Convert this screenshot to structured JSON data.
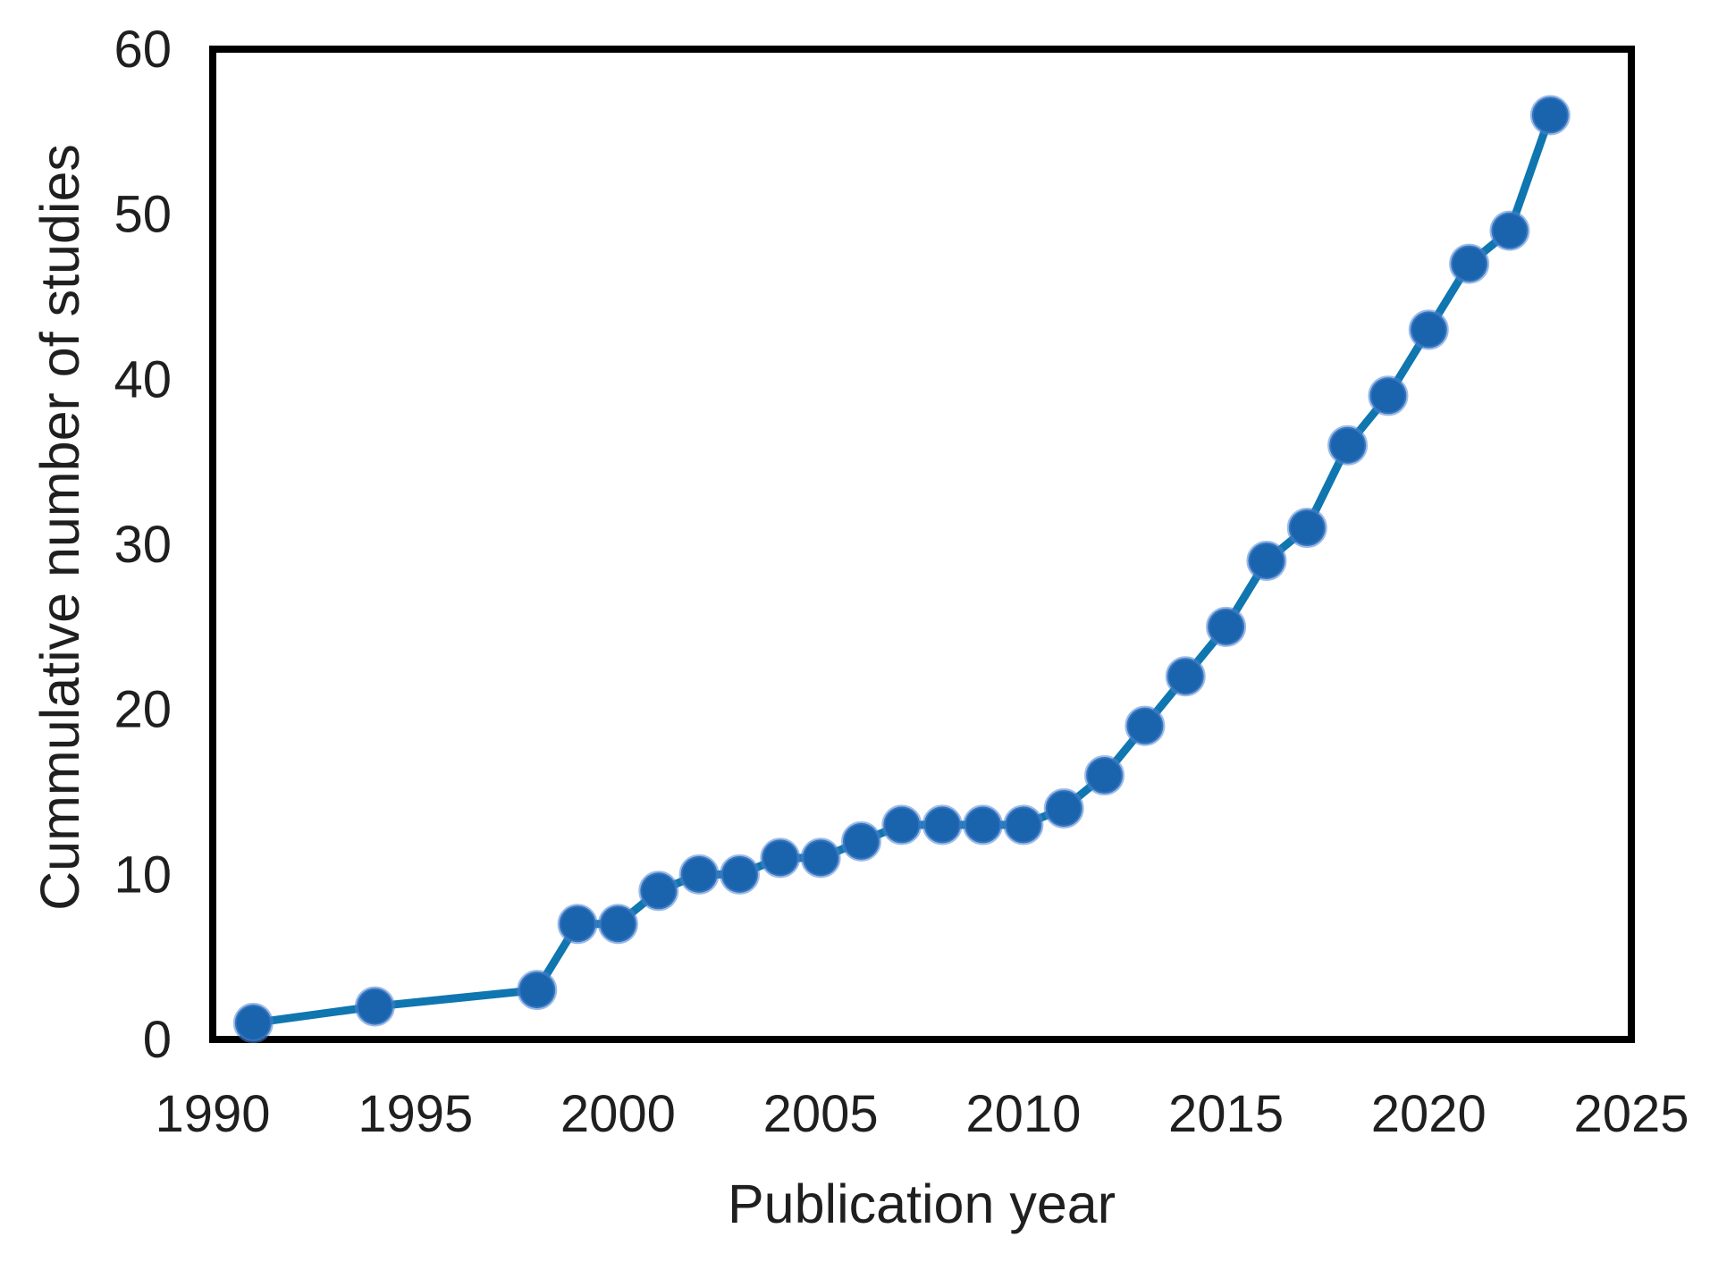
{
  "chart_data": {
    "type": "line",
    "title": "",
    "xlabel": "Publication year",
    "ylabel": "Cummulative number of studies",
    "x": [
      1991,
      1994,
      1998,
      1999,
      2000,
      2001,
      2002,
      2003,
      2004,
      2005,
      2006,
      2007,
      2008,
      2009,
      2010,
      2011,
      2012,
      2013,
      2014,
      2015,
      2016,
      2017,
      2018,
      2019,
      2020,
      2021,
      2022,
      2023
    ],
    "values": [
      1,
      2,
      3,
      7,
      7,
      9,
      10,
      10,
      11,
      11,
      12,
      13,
      13,
      13,
      13,
      14,
      16,
      19,
      22,
      25,
      29,
      31,
      36,
      39,
      43,
      47,
      49,
      56
    ],
    "xlim": [
      1990,
      2025
    ],
    "ylim": [
      0,
      60
    ],
    "xticks": [
      1990,
      1995,
      2000,
      2005,
      2010,
      2015,
      2020,
      2025
    ],
    "yticks": [
      0,
      10,
      20,
      30,
      40,
      50,
      60
    ],
    "grid": "off",
    "legend": "none",
    "line_color": "#0f76b0",
    "marker_color": "#1a63ad",
    "marker_halo_color": "#4b83cf",
    "axis_color": "#000000",
    "text_color": "#1f1f1f"
  }
}
